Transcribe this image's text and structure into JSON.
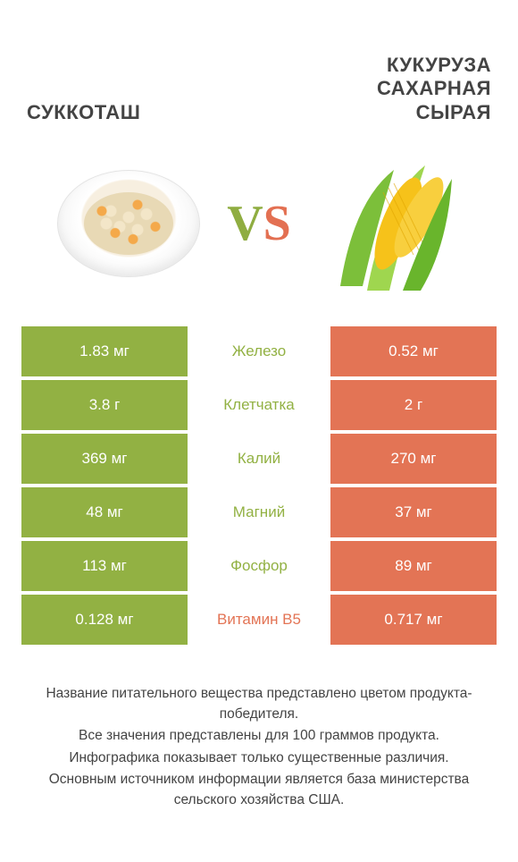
{
  "colors": {
    "green": "#92b143",
    "orange": "#e37455",
    "vs_green": "#8fad41",
    "vs_orange": "#e37052"
  },
  "header": {
    "left_title": "Суккоташ",
    "right_title": "Кукуруза\nсахарная\nсырая"
  },
  "vs": {
    "v": "V",
    "s": "S"
  },
  "rows": [
    {
      "left": "1.83 мг",
      "label": "Железо",
      "right": "0.52 мг",
      "winner": "left"
    },
    {
      "left": "3.8 г",
      "label": "Клетчатка",
      "right": "2 г",
      "winner": "left"
    },
    {
      "left": "369 мг",
      "label": "Калий",
      "right": "270 мг",
      "winner": "left"
    },
    {
      "left": "48 мг",
      "label": "Магний",
      "right": "37 мг",
      "winner": "left"
    },
    {
      "left": "113 мг",
      "label": "Фосфор",
      "right": "89 мг",
      "winner": "left"
    },
    {
      "left": "0.128 мг",
      "label": "Витамин B5",
      "right": "0.717 мг",
      "winner": "right"
    }
  ],
  "footer": [
    "Название питательного вещества представлено цветом продукта-победителя.",
    "Все значения представлены для 100 граммов продукта.",
    "Инфографика показывает только существенные различия.",
    "Основным источником информации является база министерства сельского хозяйства США."
  ]
}
